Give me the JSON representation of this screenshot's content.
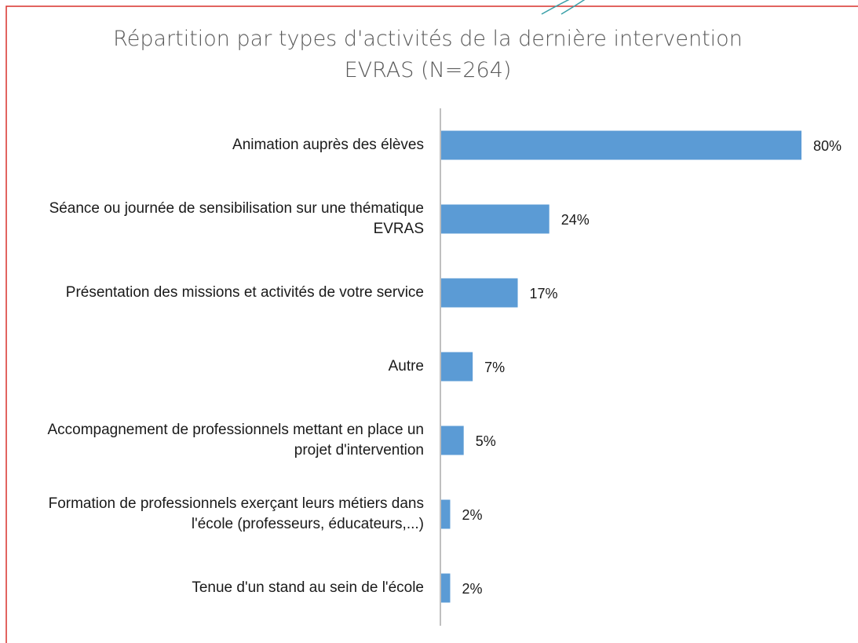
{
  "chart_data": {
    "type": "barh",
    "title": "Répartition par types d'activités de la dernière intervention EVRAS (N=264)",
    "categories": [
      "Animation auprès des élèves",
      "Séance ou journée de sensibilisation sur une thématique EVRAS",
      "Présentation des missions et activités de votre service",
      "Autre",
      "Accompagnement de professionnels mettant en place un projet d'intervention",
      "Formation de professionnels exerçant leurs métiers dans l'école (professeurs, éducateurs,...)",
      "Tenue d'un stand au sein de l'école"
    ],
    "values": [
      80,
      24,
      17,
      7,
      5,
      2,
      2
    ],
    "value_labels": [
      "80%",
      "24%",
      "17%",
      "7%",
      "5%",
      "2%",
      "2%"
    ],
    "color": "#5b9bd5"
  }
}
